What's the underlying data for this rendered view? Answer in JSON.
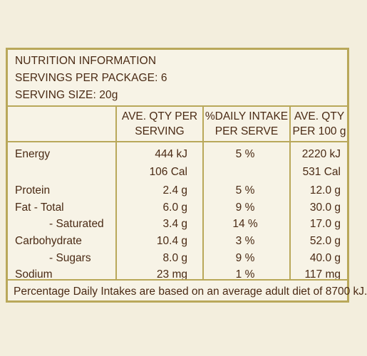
{
  "header": {
    "title": "NUTRITION INFORMATION",
    "servings_per_package": "SERVINGS PER PACKAGE: 6",
    "serving_size": "SERVING SIZE: 20g"
  },
  "columns": {
    "per_serving_l1": "AVE. QTY PER",
    "per_serving_l2": "SERVING",
    "daily_intake_l1": "%DAILY INTAKE",
    "daily_intake_l2": "PER SERVE",
    "per_100g_l1": "AVE. QTY",
    "per_100g_l2": "PER 100 g"
  },
  "rows": [
    {
      "label": "Energy",
      "per_serving": "444 kJ",
      "daily": "5 %",
      "per_100g": "2220 kJ"
    },
    {
      "label": "",
      "per_serving": "106 Cal",
      "daily": "",
      "per_100g": "531 Cal"
    },
    {
      "label": "Protein",
      "per_serving": "2.4 g",
      "daily": "5 %",
      "per_100g": "12.0 g"
    },
    {
      "label": "Fat - Total",
      "per_serving": "6.0 g",
      "daily": "9 %",
      "per_100g": "30.0 g"
    },
    {
      "label": "- Saturated",
      "per_serving": "3.4 g",
      "daily": "14 %",
      "per_100g": "17.0 g"
    },
    {
      "label": "Carbohydrate",
      "per_serving": "10.4 g",
      "daily": "3 %",
      "per_100g": "52.0 g"
    },
    {
      "label": "- Sugars",
      "per_serving": "8.0 g",
      "daily": "9 %",
      "per_100g": "40.0 g"
    },
    {
      "label": "Sodium",
      "per_serving": "23 mg",
      "daily": "1 %",
      "per_100g": "117 mg"
    }
  ],
  "footer": {
    "note": "Percentage Daily Intakes are based on an average adult diet of 8700 kJ."
  }
}
